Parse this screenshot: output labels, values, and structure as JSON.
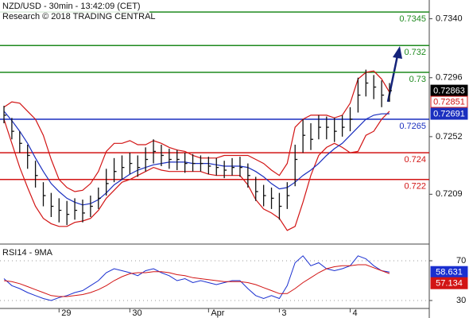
{
  "chart_data": [
    {
      "type": "ohlc",
      "title": "NZD/USD - 30min - 13:42:09 (CET)",
      "subtitle": "Research © 2018 TRADING CENTRAL",
      "categories": [
        null,
        null,
        null,
        null,
        null,
        null,
        null,
        "29",
        null,
        null,
        null,
        null,
        null,
        null,
        null,
        null,
        "30",
        null,
        null,
        null,
        null,
        null,
        null,
        null,
        null,
        null,
        "Apr",
        null,
        null,
        null,
        null,
        null,
        null,
        null,
        null,
        "3",
        null,
        null,
        null,
        null,
        null,
        null,
        null,
        null,
        "4",
        null,
        null,
        null,
        null,
        null
      ],
      "close": [
        0.7268,
        0.7256,
        0.7247,
        0.7238,
        0.7223,
        0.7208,
        0.72,
        0.7197,
        0.7194,
        0.7197,
        0.7195,
        0.72,
        0.7206,
        0.7217,
        0.7226,
        0.7229,
        0.7232,
        0.7229,
        0.7235,
        0.7241,
        0.7238,
        0.7235,
        0.7235,
        0.7232,
        0.7232,
        0.7232,
        0.723,
        0.7229,
        0.7227,
        0.7229,
        0.7229,
        0.7223,
        0.7211,
        0.7208,
        0.7206,
        0.72,
        0.7208,
        0.7235,
        0.7253,
        0.725,
        0.7259,
        0.7259,
        0.7256,
        0.7259,
        0.7265,
        0.7283,
        0.7292,
        0.7289,
        0.7283,
        0.72863
      ],
      "high": [
        0.7275,
        0.7266,
        0.7256,
        0.7246,
        0.7234,
        0.7218,
        0.721,
        0.7206,
        0.7204,
        0.7206,
        0.7205,
        0.7208,
        0.7214,
        0.7228,
        0.7236,
        0.7238,
        0.724,
        0.7238,
        0.7244,
        0.725,
        0.7246,
        0.7243,
        0.7242,
        0.724,
        0.7239,
        0.7238,
        0.7237,
        0.7236,
        0.7234,
        0.7236,
        0.7237,
        0.7232,
        0.7222,
        0.7216,
        0.7214,
        0.721,
        0.7218,
        0.7246,
        0.7265,
        0.7262,
        0.7268,
        0.7267,
        0.7266,
        0.7268,
        0.7274,
        0.7296,
        0.7302,
        0.7298,
        0.7294,
        0.7292
      ],
      "low": [
        0.7262,
        0.725,
        0.724,
        0.7228,
        0.7214,
        0.72,
        0.7192,
        0.7188,
        0.7186,
        0.719,
        0.7188,
        0.7192,
        0.7198,
        0.7208,
        0.7218,
        0.722,
        0.7224,
        0.7222,
        0.7226,
        0.7232,
        0.723,
        0.7228,
        0.7227,
        0.7225,
        0.7226,
        0.7226,
        0.7224,
        0.7223,
        0.7221,
        0.7223,
        0.7222,
        0.7214,
        0.7204,
        0.72,
        0.7198,
        0.719,
        0.7198,
        0.7215,
        0.724,
        0.7242,
        0.725,
        0.725,
        0.7248,
        0.7252,
        0.7256,
        0.727,
        0.7282,
        0.728,
        0.7274,
        0.7278
      ],
      "bar_color": "#111111",
      "series": [
        {
          "color": "#d21414",
          "values": [
            0.7274,
            0.7278,
            0.7277,
            0.7271,
            0.7265,
            0.7253,
            0.7235,
            0.722,
            0.7214,
            0.7211,
            0.7212,
            0.7217,
            0.7226,
            0.7241,
            0.7247,
            0.7247,
            0.7249,
            0.7246,
            0.7246,
            0.7249,
            0.7247,
            0.7244,
            0.7242,
            0.7241,
            0.7238,
            0.7236,
            0.7236,
            0.7236,
            0.7238,
            0.7238,
            0.7238,
            0.7238,
            0.7235,
            0.7232,
            0.7227,
            0.7223,
            0.7232,
            0.7259,
            0.7265,
            0.7268,
            0.7268,
            0.7268,
            0.7266,
            0.7268,
            0.7277,
            0.7295,
            0.73,
            0.7301,
            0.7295,
            0.72851
          ]
        },
        {
          "color": "#d21414",
          "values": [
            0.7265,
            0.7247,
            0.7229,
            0.7214,
            0.72,
            0.7191,
            0.7187,
            0.7185,
            0.7185,
            0.7188,
            0.7189,
            0.7191,
            0.7197,
            0.7206,
            0.7212,
            0.7218,
            0.722,
            0.7223,
            0.7226,
            0.7229,
            0.7227,
            0.7226,
            0.7226,
            0.7226,
            0.7226,
            0.7226,
            0.7224,
            0.7223,
            0.7223,
            0.7223,
            0.7223,
            0.7216,
            0.7205,
            0.7198,
            0.7195,
            0.7191,
            0.7182,
            0.7185,
            0.7203,
            0.7223,
            0.7238,
            0.7244,
            0.7247,
            0.7244,
            0.724,
            0.7241,
            0.7253,
            0.7256,
            0.7265,
            0.7271
          ]
        },
        {
          "color": "#1a2fbf",
          "values": [
            0.7271,
            0.7264,
            0.7256,
            0.7247,
            0.7236,
            0.7226,
            0.7217,
            0.7211,
            0.7206,
            0.7203,
            0.7201,
            0.7202,
            0.7205,
            0.721,
            0.7216,
            0.722,
            0.7224,
            0.7227,
            0.7229,
            0.7231,
            0.7232,
            0.7233,
            0.7233,
            0.7233,
            0.7232,
            0.7232,
            0.7232,
            0.7231,
            0.723,
            0.723,
            0.723,
            0.7229,
            0.7226,
            0.7222,
            0.7217,
            0.7213,
            0.7214,
            0.7218,
            0.7223,
            0.7227,
            0.7232,
            0.7238,
            0.7243,
            0.7247,
            0.7253,
            0.7259,
            0.7265,
            0.7268,
            0.7269,
            0.72691
          ]
        }
      ],
      "levels": [
        {
          "value": 0.7345,
          "color": "#1f8a1f"
        },
        {
          "value": 0.732,
          "color": "#1f8a1f"
        },
        {
          "value": 0.73,
          "color": "#1f8a1f"
        },
        {
          "value": 0.7265,
          "color": "#1a2fbf"
        },
        {
          "value": 0.724,
          "color": "#d21414"
        },
        {
          "value": 0.722,
          "color": "#d21414"
        }
      ],
      "ylim": [
        0.7173,
        0.7354
      ],
      "yticks": [
        {
          "value": 0.734,
          "label": "0.7340"
        },
        0.7296,
        0.7252,
        0.7209
      ]
    },
    {
      "type": "line",
      "title": "RSI14 - 9MA",
      "series": [
        {
          "color": "#1a2fd0",
          "values": [
            52,
            45,
            42,
            38,
            35,
            32,
            30,
            33,
            35,
            38,
            40,
            45,
            50,
            58,
            62,
            60,
            58,
            55,
            60,
            62,
            58,
            55,
            50,
            52,
            48,
            50,
            48,
            46,
            48,
            50,
            50,
            42,
            35,
            32,
            35,
            32,
            45,
            68,
            75,
            65,
            68,
            62,
            60,
            62,
            65,
            75,
            72,
            65,
            60,
            58.631
          ]
        },
        {
          "color": "#d21414",
          "values": [
            50,
            49,
            47,
            44,
            41,
            38,
            35,
            34,
            34,
            35,
            36,
            38,
            41,
            45,
            50,
            54,
            57,
            58,
            58,
            59,
            59,
            58,
            56,
            55,
            53,
            52,
            51,
            50,
            49,
            49,
            49,
            48,
            46,
            43,
            40,
            37,
            37,
            42,
            48,
            53,
            58,
            62,
            64,
            65,
            65,
            66,
            66,
            63,
            60,
            57.134
          ]
        }
      ],
      "ylim": [
        22,
        84.4
      ],
      "yticks": [
        70,
        30
      ],
      "grid": true
    }
  ]
}
